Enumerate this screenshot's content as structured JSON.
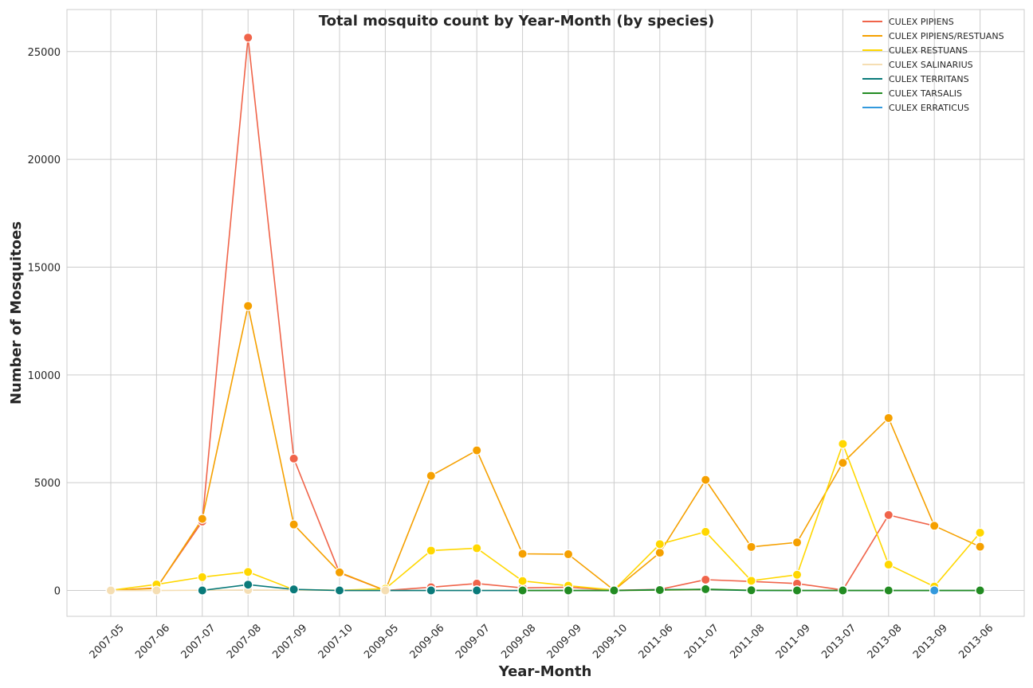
{
  "chart_data": {
    "type": "line",
    "title": "Total mosquito count by Year-Month (by species)",
    "xlabel": "Year-Month",
    "ylabel": "Number of Mosquitoes",
    "ylim": [
      -1200,
      26950
    ],
    "yticks": [
      0,
      5000,
      10000,
      15000,
      20000,
      25000
    ],
    "grid": true,
    "legend_position": "top-right",
    "categories": [
      "2007-05",
      "2007-06",
      "2007-07",
      "2007-08",
      "2007-09",
      "2007-10",
      "2009-05",
      "2009-06",
      "2009-07",
      "2009-08",
      "2009-09",
      "2009-10",
      "2011-06",
      "2011-07",
      "2011-08",
      "2011-09",
      "2013-07",
      "2013-08",
      "2013-09",
      "2013-06"
    ],
    "series": [
      {
        "name": "CULEX PIPIENS",
        "color": "#f0644a",
        "values": [
          0,
          120,
          3200,
          25650,
          6120,
          820,
          0,
          150,
          320,
          120,
          150,
          10,
          50,
          500,
          420,
          320,
          20,
          3500,
          3000,
          null
        ]
      },
      {
        "name": "CULEX PIPIENS/RESTUANS",
        "color": "#f5a000",
        "values": [
          10,
          100,
          3320,
          13200,
          3060,
          840,
          0,
          5320,
          6500,
          1700,
          1680,
          10,
          1750,
          5130,
          2020,
          2230,
          5920,
          8000,
          3000,
          2030
        ]
      },
      {
        "name": "CULEX RESTUANS",
        "color": "#ffd700",
        "values": [
          10,
          280,
          620,
          860,
          40,
          10,
          80,
          1850,
          1960,
          440,
          220,
          20,
          2150,
          2720,
          450,
          730,
          6800,
          1200,
          180,
          2680
        ]
      },
      {
        "name": "CULEX SALINARIUS",
        "color": "#f5deb3",
        "values": [
          0,
          0,
          10,
          20,
          10,
          null,
          0,
          10,
          10,
          10,
          10,
          0,
          10,
          10,
          10,
          10,
          10,
          10,
          null,
          10
        ]
      },
      {
        "name": "CULEX TERRITANS",
        "color": "#0a7a7a",
        "values": [
          null,
          null,
          0,
          270,
          50,
          0,
          null,
          0,
          0,
          0,
          0,
          0,
          40,
          40,
          0,
          0,
          0,
          0,
          0,
          0
        ]
      },
      {
        "name": "CULEX TARSALIS",
        "color": "#228b22",
        "values": [
          null,
          null,
          null,
          null,
          null,
          null,
          null,
          null,
          null,
          0,
          0,
          0,
          20,
          60,
          10,
          0,
          0,
          0,
          0,
          0
        ]
      },
      {
        "name": "CULEX ERRATICUS",
        "color": "#3399dd",
        "values": [
          null,
          null,
          null,
          null,
          null,
          null,
          null,
          null,
          null,
          null,
          null,
          null,
          null,
          null,
          null,
          null,
          null,
          null,
          0,
          null
        ]
      }
    ]
  }
}
